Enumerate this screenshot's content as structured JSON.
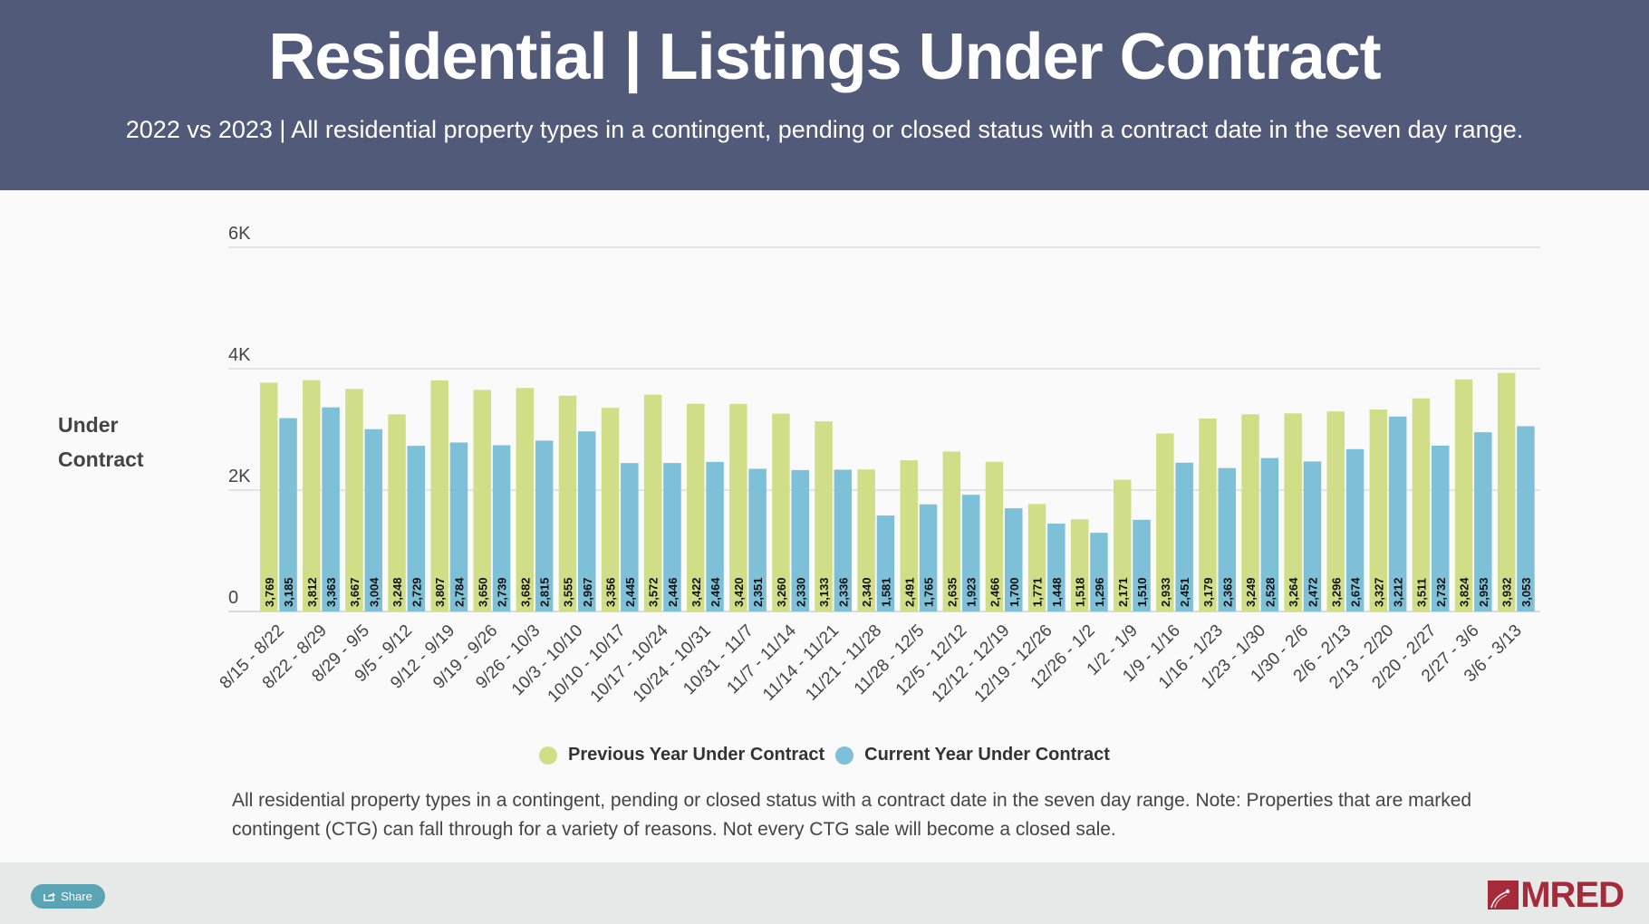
{
  "header": {
    "title": "Residential | Listings Under Contract",
    "subtitle": "2022 vs 2023 | All residential property types in a contingent, pending or closed status with a contract date in the seven day range."
  },
  "colors": {
    "header_bg": "#525a7a",
    "previous_year": "#d1de88",
    "current_year": "#7fc0d9",
    "brand": "#a52a3a",
    "share_button": "#5aa4b4"
  },
  "note": "All residential property types in a contingent, pending or closed status with a contract date in the seven day range. Note: Properties that are marked contingent (CTG) can fall through for a variety of reasons. Not every CTG sale will become a closed sale.",
  "footer": {
    "share_label": "Share",
    "logo_text": "MRED"
  },
  "chart_data": {
    "type": "bar",
    "title": "Residential | Listings Under Contract",
    "xlabel": "",
    "ylabel": "Under Contract",
    "ylabel_lines": [
      "Under",
      "Contract"
    ],
    "ylim": [
      0,
      6000
    ],
    "yticks": [
      0,
      2000,
      4000,
      6000
    ],
    "ytick_labels": [
      "0",
      "2K",
      "4K",
      "6K"
    ],
    "grid": true,
    "legend_position": "bottom",
    "categories": [
      "8/15 - 8/22",
      "8/22 - 8/29",
      "8/29 - 9/5",
      "9/5 - 9/12",
      "9/12 - 9/19",
      "9/19 - 9/26",
      "9/26 - 10/3",
      "10/3 - 10/10",
      "10/10 - 10/17",
      "10/17 - 10/24",
      "10/24 - 10/31",
      "10/31 - 11/7",
      "11/7 - 11/14",
      "11/14 - 11/21",
      "11/21 - 11/28",
      "11/28 - 12/5",
      "12/5 - 12/12",
      "12/12 - 12/19",
      "12/19 - 12/26",
      "12/26 - 1/2",
      "1/2 - 1/9",
      "1/9 - 1/16",
      "1/16 - 1/23",
      "1/23 - 1/30",
      "1/30 - 2/6",
      "2/6 - 2/13",
      "2/13 - 2/20",
      "2/20 - 2/27",
      "2/27 - 3/6",
      "3/6 - 3/13"
    ],
    "series": [
      {
        "name": "Previous Year Under Contract",
        "color": "#d1de88",
        "values": [
          3769,
          3812,
          3667,
          3248,
          3807,
          3650,
          3682,
          3555,
          3356,
          3572,
          3422,
          3420,
          3260,
          3133,
          2340,
          2491,
          2635,
          2466,
          1771,
          1518,
          2171,
          2933,
          3179,
          3249,
          3264,
          3296,
          3327,
          3511,
          3824,
          3932
        ]
      },
      {
        "name": "Current Year Under Contract",
        "color": "#7fc0d9",
        "values": [
          3185,
          3363,
          3004,
          2729,
          2784,
          2739,
          2815,
          2967,
          2445,
          2446,
          2464,
          2351,
          2330,
          2336,
          1581,
          1765,
          1923,
          1700,
          1448,
          1296,
          1510,
          2451,
          2363,
          2528,
          2472,
          2674,
          3212,
          2732,
          2953,
          3053
        ]
      }
    ]
  }
}
